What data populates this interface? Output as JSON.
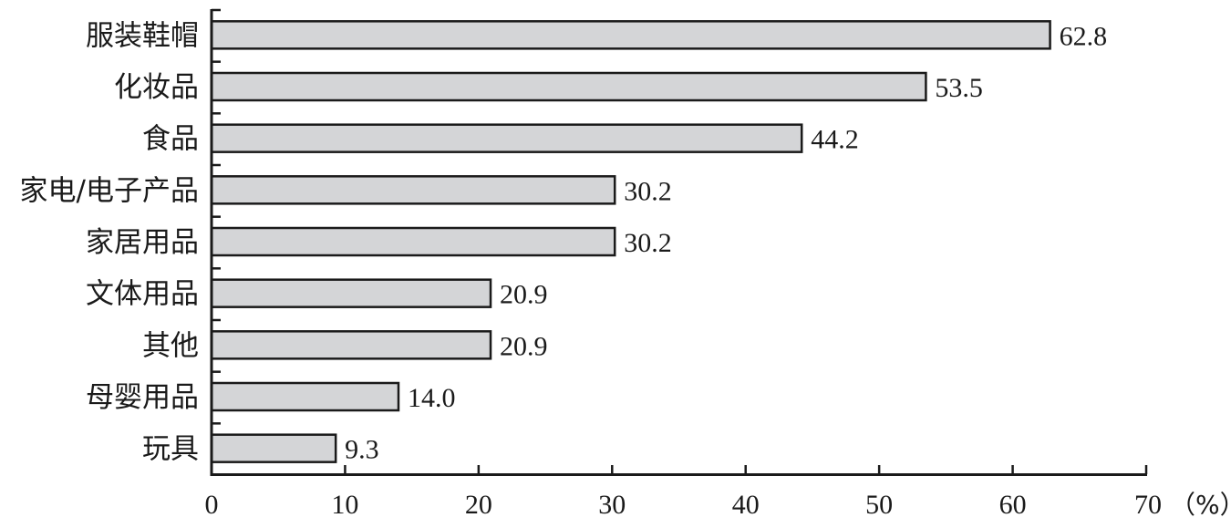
{
  "chart_data": {
    "type": "bar",
    "orientation": "horizontal",
    "categories": [
      "服装鞋帽",
      "化妆品",
      "食品",
      "家电/电子产品",
      "家居用品",
      "文体用品",
      "其他",
      "母婴用品",
      "玩具"
    ],
    "values": [
      62.8,
      53.5,
      44.2,
      30.2,
      30.2,
      20.9,
      20.9,
      14.0,
      9.3
    ],
    "value_labels": [
      "62.8",
      "53.5",
      "44.2",
      "30.2",
      "30.2",
      "20.9",
      "20.9",
      "14.0",
      "9.3"
    ],
    "xlim": [
      0,
      70
    ],
    "xticks": [
      "0",
      "10",
      "20",
      "30",
      "40",
      "50",
      "60",
      "70"
    ],
    "x_unit": "（%）",
    "grid": false,
    "colors": {
      "bar_fill": "#d4d5d7",
      "bar_stroke": "#1a1a1a"
    }
  }
}
